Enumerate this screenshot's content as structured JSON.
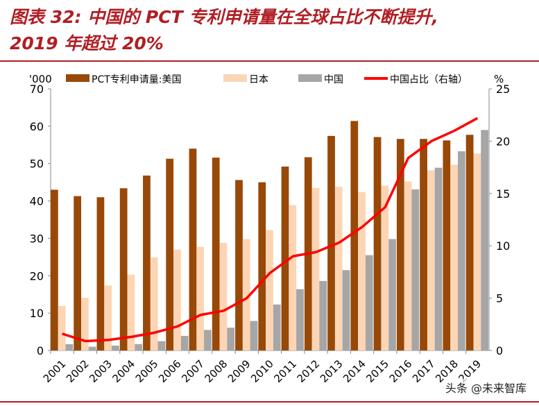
{
  "title_line1": "图表 32:  中国的 PCT 专利申请量在全球占比不断提升,",
  "title_line2": "2019 年超过 20%",
  "watermark": "头条 @未来智库",
  "chart_data": {
    "type": "bar+line",
    "categories": [
      "2001",
      "2002",
      "2003",
      "2004",
      "2005",
      "2006",
      "2007",
      "2008",
      "2009",
      "2010",
      "2011",
      "2012",
      "2013",
      "2014",
      "2015",
      "2016",
      "2017",
      "2018",
      "2019"
    ],
    "left_axis_unit": "'000",
    "right_axis_unit": "%",
    "ylim_left": [
      0,
      70
    ],
    "yticks_left": [
      0,
      10,
      20,
      30,
      40,
      50,
      60,
      70
    ],
    "ylim_right": [
      0,
      25
    ],
    "yticks_right": [
      0,
      5,
      10,
      15,
      20,
      25
    ],
    "legend_position": "top",
    "series": [
      {
        "name": "PCT专利申请量:美国",
        "type": "bar",
        "axis": "left",
        "color": "#984807",
        "values": [
          43.0,
          41.3,
          41.0,
          43.4,
          46.8,
          51.3,
          54.0,
          51.6,
          45.6,
          45.0,
          49.2,
          51.7,
          57.4,
          61.4,
          57.1,
          56.6,
          56.6,
          56.2,
          57.7
        ]
      },
      {
        "name": "日本",
        "type": "bar",
        "axis": "left",
        "color": "#fcd5b5",
        "values": [
          11.9,
          14.1,
          17.4,
          20.3,
          24.9,
          27.0,
          27.7,
          28.8,
          29.8,
          32.2,
          38.9,
          43.5,
          43.8,
          42.4,
          44.1,
          45.2,
          48.2,
          49.7,
          52.7
        ]
      },
      {
        "name": "中国",
        "type": "bar",
        "axis": "left",
        "color": "#a6a6a6",
        "values": [
          1.7,
          1.0,
          1.3,
          1.7,
          2.5,
          3.9,
          5.5,
          6.1,
          7.9,
          12.3,
          16.4,
          18.6,
          21.5,
          25.5,
          29.8,
          43.1,
          48.9,
          53.3,
          59.0
        ]
      },
      {
        "name": "中国占比（右轴）",
        "type": "line",
        "axis": "right",
        "color": "#ff0000",
        "values": [
          1.6,
          0.9,
          1.0,
          1.3,
          1.7,
          2.3,
          3.4,
          3.8,
          5.0,
          7.4,
          9.0,
          9.4,
          10.3,
          11.8,
          13.7,
          18.4,
          20.0,
          21.0,
          22.2
        ]
      }
    ]
  }
}
